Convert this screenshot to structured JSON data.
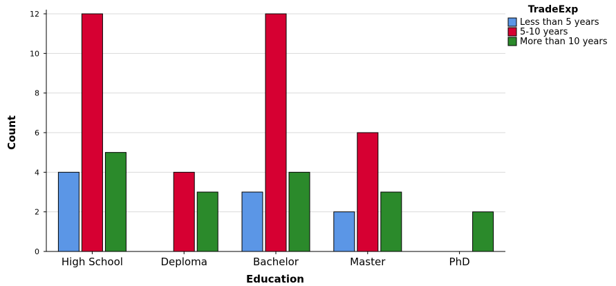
{
  "chart_data": {
    "type": "bar",
    "xlabel": "Education",
    "ylabel": "Count",
    "ylim": [
      0,
      12
    ],
    "yticks": [
      0,
      2,
      4,
      6,
      8,
      10,
      12
    ],
    "grid": true,
    "categories": [
      "High School",
      "Deploma",
      "Bachelor",
      "Master",
      "PhD"
    ],
    "legend": {
      "title": "TradeExp",
      "position": "top-right"
    },
    "series": [
      {
        "name": "Less than 5 years",
        "color": "#5b96e6",
        "values": [
          4,
          0,
          3,
          2,
          0
        ]
      },
      {
        "name": "5-10 years",
        "color": "#d60032",
        "values": [
          12,
          4,
          12,
          6,
          0
        ]
      },
      {
        "name": "More than 10 years",
        "color": "#2b8a2b",
        "values": [
          5,
          3,
          4,
          3,
          2
        ]
      }
    ]
  }
}
